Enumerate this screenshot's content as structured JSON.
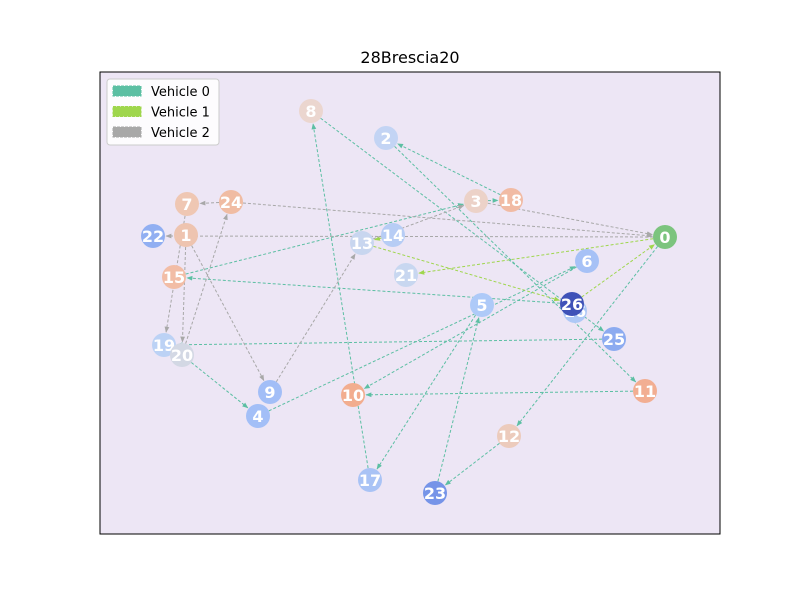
{
  "title": "28Brescia20",
  "plot_background": "#ede6f5",
  "legend": [
    {
      "label": "Vehicle 0",
      "color": "#5cbfa3"
    },
    {
      "label": "Vehicle 1",
      "color": "#9fd64d"
    },
    {
      "label": "Vehicle 2",
      "color": "#a8a8a8"
    }
  ],
  "nodes": [
    {
      "id": "0",
      "color": "#7cc47e"
    },
    {
      "id": "1",
      "color": "#eec4b0"
    },
    {
      "id": "2",
      "color": "#c3d4f4"
    },
    {
      "id": "3",
      "color": "#ecd2c8"
    },
    {
      "id": "4",
      "color": "#a3bff7"
    },
    {
      "id": "5",
      "color": "#aecaf8"
    },
    {
      "id": "6",
      "color": "#a6c1f6"
    },
    {
      "id": "7",
      "color": "#efc7b3"
    },
    {
      "id": "8",
      "color": "#ebd6cf"
    },
    {
      "id": "9",
      "color": "#a2bef7"
    },
    {
      "id": "10",
      "color": "#f2ad8f"
    },
    {
      "id": "11",
      "color": "#f2ae92"
    },
    {
      "id": "12",
      "color": "#eccbbc"
    },
    {
      "id": "13",
      "color": "#c8d6ef"
    },
    {
      "id": "14",
      "color": "#b7cdf5"
    },
    {
      "id": "15",
      "color": "#f2bda6"
    },
    {
      "id": "16",
      "color": "#aec8f6"
    },
    {
      "id": "17",
      "color": "#a9c3f5"
    },
    {
      "id": "18",
      "color": "#f1bba4"
    },
    {
      "id": "19",
      "color": "#bcd2f5"
    },
    {
      "id": "20",
      "color": "#d3d8e4"
    },
    {
      "id": "21",
      "color": "#c8d7f0"
    },
    {
      "id": "22",
      "color": "#91aff2"
    },
    {
      "id": "23",
      "color": "#7694e8"
    },
    {
      "id": "24",
      "color": "#f0bca3"
    },
    {
      "id": "25",
      "color": "#8cabf0"
    },
    {
      "id": "26",
      "color": "#3f52b8"
    }
  ],
  "edges": [
    {
      "from": "0",
      "to": "12",
      "vehicle": 0
    },
    {
      "from": "12",
      "to": "23",
      "vehicle": 0
    },
    {
      "from": "23",
      "to": "5",
      "vehicle": 0
    },
    {
      "from": "5",
      "to": "17",
      "vehicle": 0
    },
    {
      "from": "17",
      "to": "8",
      "vehicle": 0
    },
    {
      "from": "8",
      "to": "25",
      "vehicle": 0
    },
    {
      "from": "25",
      "to": "19",
      "vehicle": 0
    },
    {
      "from": "20",
      "to": "4",
      "vehicle": 0
    },
    {
      "from": "4",
      "to": "6",
      "vehicle": 0
    },
    {
      "from": "6",
      "to": "10",
      "vehicle": 0
    },
    {
      "from": "11",
      "to": "10",
      "vehicle": 0
    },
    {
      "from": "26",
      "to": "15",
      "vehicle": 0
    },
    {
      "from": "15",
      "to": "3",
      "vehicle": 0
    },
    {
      "from": "3",
      "to": "18",
      "vehicle": 0
    },
    {
      "from": "18",
      "to": "2",
      "vehicle": 0
    },
    {
      "from": "2",
      "to": "11",
      "vehicle": 0
    },
    {
      "from": "0",
      "to": "21",
      "vehicle": 1
    },
    {
      "from": "13",
      "to": "26",
      "vehicle": 1
    },
    {
      "from": "26",
      "to": "0",
      "vehicle": 1
    },
    {
      "from": "14",
      "to": "13",
      "vehicle": 1
    },
    {
      "from": "24",
      "to": "0",
      "vehicle": 2
    },
    {
      "from": "0",
      "to": "22",
      "vehicle": 2
    },
    {
      "from": "1",
      "to": "20",
      "vehicle": 2
    },
    {
      "from": "20",
      "to": "24",
      "vehicle": 2
    },
    {
      "from": "24",
      "to": "7",
      "vehicle": 2
    },
    {
      "from": "7",
      "to": "19",
      "vehicle": 2
    },
    {
      "from": "1",
      "to": "9",
      "vehicle": 2
    },
    {
      "from": "9",
      "to": "13",
      "vehicle": 2
    },
    {
      "from": "13",
      "to": "3",
      "vehicle": 2
    },
    {
      "from": "3",
      "to": "0",
      "vehicle": 2
    }
  ]
}
